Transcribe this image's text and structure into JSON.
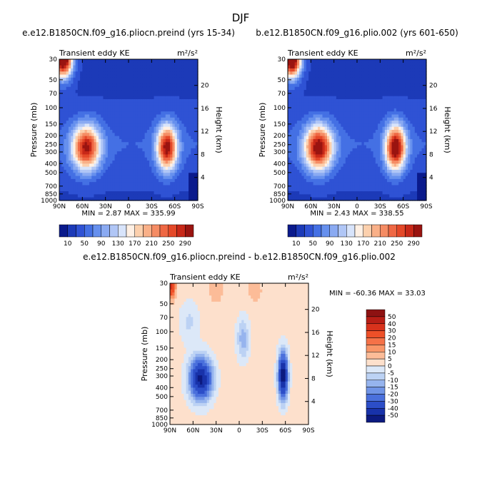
{
  "figure_title": "DJF",
  "chart_data": [
    {
      "type": "heatmap",
      "title": "e.e12.B1850CN.f09_g16.pliocn.preind (yrs 15-34)",
      "subtitle_left": "Transient eddy KE",
      "subtitle_right": "m²/s²",
      "ylabel": "Pressure (mb)",
      "ylabel_right": "Height (km)",
      "x_ticks": [
        "90N",
        "60N",
        "30N",
        "0",
        "30S",
        "60S",
        "90S"
      ],
      "y_ticks": [
        "30",
        "50",
        "70",
        "100",
        "150",
        "200",
        "250",
        "300",
        "400",
        "500",
        "700",
        "850",
        "1000"
      ],
      "y_right_ticks": [
        "20",
        "16",
        "12",
        "8",
        "4"
      ],
      "min_max_text": "MIN = 2.87 MAX = 335.99",
      "colorbar_labels": [
        "10",
        "50",
        "90",
        "130",
        "170",
        "210",
        "250",
        "290"
      ],
      "features": [
        {
          "lat": 55,
          "p": 270,
          "value": 290
        },
        {
          "lat": -50,
          "p": 270,
          "value": 300
        },
        {
          "lat": 85,
          "p": 30,
          "value": 330
        }
      ]
    },
    {
      "type": "heatmap",
      "title": "b.e12.B1850CN.f09_g16.plio.002 (yrs 601-650)",
      "subtitle_left": "Transient eddy KE",
      "subtitle_right": "m²/s²",
      "ylabel": "Pressure (mb)",
      "ylabel_right": "Height (km)",
      "x_ticks": [
        "90N",
        "60N",
        "30N",
        "0",
        "30S",
        "60S",
        "90S"
      ],
      "y_ticks": [
        "30",
        "50",
        "70",
        "100",
        "150",
        "200",
        "250",
        "300",
        "400",
        "500",
        "700",
        "850",
        "1000"
      ],
      "y_right_ticks": [
        "20",
        "16",
        "12",
        "8",
        "4"
      ],
      "min_max_text": "MIN = 2.43 MAX = 338.55",
      "colorbar_labels": [
        "10",
        "50",
        "90",
        "130",
        "170",
        "210",
        "250",
        "290"
      ],
      "features": [
        {
          "lat": 50,
          "p": 270,
          "value": 310
        },
        {
          "lat": -50,
          "p": 270,
          "value": 320
        },
        {
          "lat": 85,
          "p": 30,
          "value": 335
        }
      ]
    },
    {
      "type": "heatmap",
      "title": "e.e12.B1850CN.f09_g16.pliocn.preind - b.e12.B1850CN.f09_g16.plio.002",
      "subtitle_left": "Transient eddy KE",
      "subtitle_right": "m²/s²",
      "ylabel": "Pressure (mb)",
      "ylabel_right": "Height (km)",
      "x_ticks": [
        "90N",
        "60N",
        "30N",
        "0",
        "30S",
        "60S",
        "90S"
      ],
      "y_ticks": [
        "30",
        "50",
        "70",
        "100",
        "150",
        "200",
        "250",
        "300",
        "400",
        "500",
        "700",
        "850",
        "1000"
      ],
      "y_right_ticks": [
        "20",
        "16",
        "12",
        "8",
        "4"
      ],
      "min_max_text": "MIN = -60.36   MAX = 33.03",
      "colorbar_labels": [
        "50",
        "40",
        "30",
        "20",
        "15",
        "10",
        "5",
        "0",
        "-5",
        "-10",
        "-15",
        "-20",
        "-30",
        "-40",
        "-50"
      ],
      "features": [
        {
          "lat": 50,
          "p": 320,
          "value": -55
        },
        {
          "lat": -57,
          "p": 300,
          "value": -60
        },
        {
          "lat": 88,
          "p": 30,
          "value": 33
        },
        {
          "lat": -5,
          "p": 120,
          "value": -15
        }
      ]
    }
  ],
  "colors": {
    "abs_scale": [
      "#0a1a8c",
      "#1c3ab8",
      "#2f52d4",
      "#4470e4",
      "#6690ee",
      "#8aaaf2",
      "#b0c6f6",
      "#d8e4fb",
      "#fff0e4",
      "#fcd0ad",
      "#f9b088",
      "#f58c64",
      "#ef6844",
      "#e44828",
      "#c82818",
      "#9a1410"
    ],
    "diff_scale_top_to_bottom": [
      "#8e1212",
      "#b81e16",
      "#d8321c",
      "#ee5028",
      "#f57248",
      "#f99668",
      "#fcbc98",
      "#fde0cc",
      "#dce8f8",
      "#bcd2f4",
      "#96b4ee",
      "#7094e6",
      "#4a70dc",
      "#2c4ec8",
      "#1832aa",
      "#0c1a80"
    ]
  }
}
